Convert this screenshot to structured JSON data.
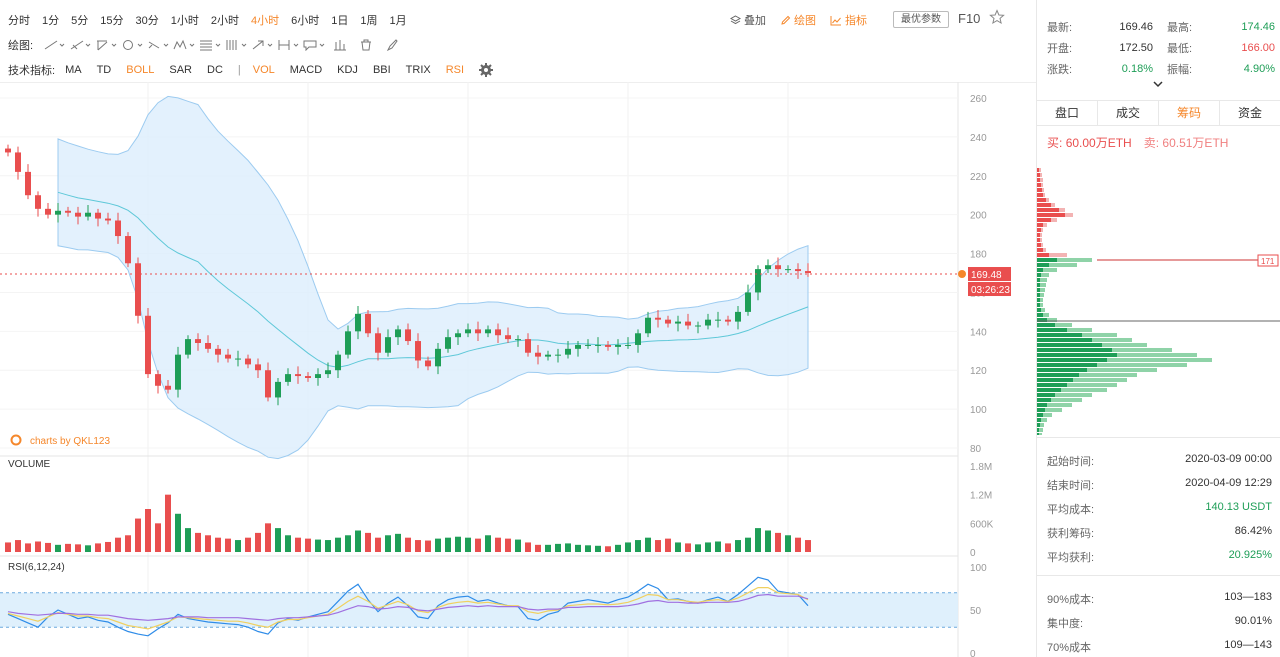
{
  "toolbar": {
    "timeframes": [
      "分时",
      "1分",
      "5分",
      "15分",
      "30分",
      "1小时",
      "2小时",
      "4小时",
      "6小时",
      "1日",
      "1周",
      "1月"
    ],
    "active_timeframe": "4小时",
    "overlay_label": "叠加",
    "draw_label": "绘图",
    "indicator_label": "指标",
    "latest_params_label": "最优参数",
    "f10_label": "F10",
    "drawing_label": "绘图:",
    "tech_label": "技术指标:",
    "indicators_left": [
      "MA",
      "TD",
      "BOLL",
      "SAR",
      "DC"
    ],
    "indicators_right": [
      "VOL",
      "MACD",
      "KDJ",
      "BBI",
      "TRIX",
      "RSI"
    ],
    "active_indicators": [
      "BOLL",
      "VOL",
      "RSI"
    ]
  },
  "quote": {
    "latest_label": "最新:",
    "latest": "169.46",
    "high_label": "最高:",
    "high": "174.46",
    "open_label": "开盘:",
    "open": "172.50",
    "low_label": "最低:",
    "low": "166.00",
    "change_label": "涨跌:",
    "change": "0.18%",
    "amplitude_label": "振幅:",
    "amplitude": "4.90%"
  },
  "tabs": [
    "盘口",
    "成交",
    "筹码",
    "资金"
  ],
  "active_tab": "筹码",
  "orders": {
    "buy_label": "买:",
    "buy_value": "60.00万ETH",
    "sell_label": "卖:",
    "sell_value": "60.51万ETH"
  },
  "chips": {
    "start_time_label": "起始时间:",
    "start_time": "2020-03-09 00:00",
    "end_time_label": "结束时间:",
    "end_time": "2020-04-09 12:29",
    "avg_cost_label": "平均成本:",
    "avg_cost": "140.13 USDT",
    "profit_ratio_label": "获利筹码:",
    "profit_ratio": "86.42%",
    "avg_profit_label": "平均获利:",
    "avg_profit": "20.925%",
    "cost90_label": "90%成本:",
    "cost90": "103—183",
    "concentration_label": "集中度:",
    "concentration": "90.01%",
    "cost70_label": "70%成本",
    "cost70": "109—143",
    "marker_price": "171"
  },
  "colors": {
    "up": "#e94e4e",
    "down": "#1e9e57",
    "accent": "#f5872b",
    "boll_band": "#dceefc",
    "boll_mid": "#5ec8d8"
  },
  "watermark": "charts by QKL123",
  "chart_data": [
    {
      "type": "candlestick",
      "title": "",
      "overlay": "BOLL",
      "ylim": [
        80,
        260
      ],
      "yticks": [
        260,
        240,
        220,
        200,
        180,
        160,
        140,
        120,
        100,
        80
      ],
      "last_price": "169.48",
      "countdown": "03:26:23",
      "close_series": [
        232,
        222,
        210,
        203,
        200,
        202,
        201,
        199,
        201,
        198,
        197,
        189,
        175,
        148,
        118,
        112,
        110,
        128,
        136,
        134,
        131,
        128,
        126,
        126,
        123,
        120,
        106,
        114,
        118,
        117,
        116,
        118,
        120,
        128,
        140,
        149,
        139,
        129,
        137,
        141,
        135,
        125,
        122,
        131,
        137,
        139,
        141,
        139,
        141,
        138,
        136,
        136,
        129,
        127,
        128,
        128,
        131,
        133,
        133,
        133,
        132,
        133,
        133,
        139,
        147,
        146,
        144,
        145,
        143,
        143,
        146,
        146,
        145,
        150,
        160,
        172,
        174,
        172,
        172,
        171,
        170
      ]
    },
    {
      "type": "bar",
      "title": "VOLUME",
      "ylim": [
        0,
        1800000
      ],
      "yticks": [
        "1.8M",
        "1.2M",
        "600K",
        "0"
      ],
      "values": [
        200,
        250,
        180,
        220,
        190,
        150,
        170,
        160,
        140,
        180,
        210,
        300,
        350,
        700,
        900,
        600,
        1200,
        800,
        500,
        400,
        350,
        300,
        280,
        250,
        300,
        400,
        600,
        500,
        350,
        300,
        280,
        260,
        250,
        300,
        350,
        450,
        400,
        300,
        350,
        380,
        300,
        250,
        240,
        280,
        300,
        320,
        300,
        280,
        350,
        300,
        280,
        260,
        200,
        150,
        150,
        170,
        180,
        150,
        140,
        130,
        120,
        150,
        200,
        250,
        300,
        250,
        280,
        200,
        180,
        160,
        200,
        220,
        180,
        250,
        300,
        500,
        450,
        400,
        350,
        300,
        250
      ]
    },
    {
      "type": "line",
      "title": "RSI(6,12,24)",
      "ylim": [
        0,
        100
      ],
      "yticks": [
        100,
        50,
        0
      ],
      "series": [
        {
          "name": "RSI6",
          "values": [
            45,
            40,
            35,
            30,
            42,
            50,
            45,
            40,
            42,
            38,
            36,
            30,
            25,
            22,
            20,
            28,
            35,
            45,
            40,
            38,
            36,
            35,
            34,
            33,
            30,
            25,
            22,
            35,
            40,
            38,
            42,
            45,
            48,
            60,
            72,
            80,
            62,
            48,
            58,
            65,
            55,
            42,
            40,
            55,
            62,
            65,
            66,
            60,
            62,
            58,
            55,
            54,
            40,
            38,
            45,
            48,
            58,
            60,
            62,
            60,
            58,
            62,
            65,
            72,
            80,
            75,
            62,
            63,
            60,
            58,
            62,
            65,
            60,
            68,
            78,
            88,
            85,
            72,
            70,
            68,
            55
          ]
        },
        {
          "name": "RSI12",
          "values": [
            46,
            43,
            40,
            37,
            42,
            47,
            45,
            43,
            43,
            41,
            40,
            36,
            32,
            30,
            28,
            32,
            36,
            42,
            41,
            40,
            39,
            38,
            37,
            37,
            35,
            32,
            30,
            36,
            39,
            39,
            41,
            43,
            45,
            52,
            60,
            66,
            60,
            52,
            56,
            60,
            56,
            49,
            47,
            53,
            57,
            59,
            60,
            58,
            59,
            57,
            55,
            55,
            48,
            46,
            49,
            50,
            55,
            56,
            57,
            57,
            56,
            57,
            59,
            63,
            68,
            67,
            62,
            62,
            60,
            59,
            61,
            62,
            60,
            64,
            70,
            76,
            76,
            70,
            69,
            68,
            62
          ]
        },
        {
          "name": "RSI24",
          "values": [
            48,
            46,
            45,
            44,
            45,
            46,
            46,
            45,
            45,
            44,
            44,
            42,
            40,
            39,
            38,
            39,
            40,
            42,
            42,
            42,
            41,
            41,
            41,
            41,
            40,
            39,
            38,
            40,
            41,
            41,
            42,
            43,
            44,
            47,
            51,
            55,
            54,
            51,
            52,
            54,
            53,
            50,
            49,
            51,
            53,
            54,
            55,
            54,
            55,
            54,
            54,
            54,
            51,
            50,
            51,
            51,
            53,
            53,
            54,
            54,
            54,
            54,
            55,
            57,
            60,
            61,
            59,
            59,
            58,
            58,
            59,
            59,
            59,
            60,
            63,
            67,
            68,
            66,
            66,
            66,
            63
          ]
        }
      ]
    },
    {
      "type": "bar",
      "title": "",
      "orientation": "horizontal",
      "series": [
        {
          "name": "profit",
          "values": [
            4,
            5,
            6,
            6,
            7,
            8,
            12,
            18,
            28,
            36,
            20,
            10,
            6,
            5,
            5,
            6,
            9,
            30,
            55,
            40,
            20,
            12,
            10,
            9,
            8,
            7,
            6,
            6,
            8,
            12,
            20,
            35,
            55,
            80,
            95,
            110,
            135,
            160,
            175,
            150,
            120,
            100,
            90,
            80,
            70,
            55,
            45,
            35,
            25,
            15,
            10,
            7,
            6,
            5
          ]
        },
        {
          "name": "loss",
          "values": [
            2,
            3,
            3,
            4,
            5,
            6,
            9,
            14,
            22,
            28,
            14,
            6,
            4,
            3,
            3,
            4,
            6,
            12,
            20,
            12,
            6,
            4,
            3,
            3,
            3,
            3,
            3,
            3,
            4,
            6,
            10,
            18,
            30,
            45,
            55,
            65,
            75,
            80,
            70,
            60,
            50,
            42,
            36,
            30,
            24,
            18,
            14,
            10,
            8,
            6,
            4,
            3,
            2,
            2
          ]
        }
      ]
    }
  ]
}
